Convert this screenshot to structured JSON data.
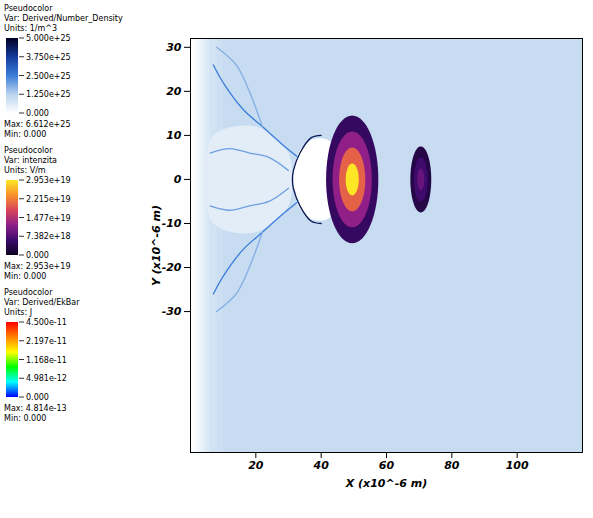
{
  "chart_data": {
    "type": "pseudocolor",
    "x_label": "X (x10^-6 m)",
    "y_label": "Y (x10^-6 m)",
    "xlim": [
      0,
      120
    ],
    "xticks": [
      20,
      40,
      60,
      80,
      100
    ],
    "ylim": [
      -62,
      32
    ],
    "yticks": [
      -30,
      -20,
      -10,
      0,
      10,
      20,
      30
    ],
    "colorbars": [
      {
        "title": "Pseudocolor",
        "var": "Var: Derived/Number_Density",
        "units": "Units: 1/m^3",
        "range": [
          0,
          5e+25
        ],
        "ticks": [
          {
            "value": 5e+25,
            "label": "5.000e+25"
          },
          {
            "value": 3.75e+25,
            "label": "3.750e+25"
          },
          {
            "value": 2.5e+25,
            "label": "2.500e+25"
          },
          {
            "value": 1.25e+25,
            "label": "1.250e+25"
          },
          {
            "value": 0,
            "label": "0.000"
          }
        ],
        "max": "Max: 6.612e+25",
        "min": "Min: 0.000"
      },
      {
        "title": "Pseudocolor",
        "var": "Var: intenzita",
        "units": "Units: V/m",
        "range": [
          0,
          2.953e+19
        ],
        "ticks": [
          {
            "value": 2.953e+19,
            "label": "2.953e+19"
          },
          {
            "value": 2.215e+19,
            "label": "2.215e+19"
          },
          {
            "value": 1.477e+19,
            "label": "1.477e+19"
          },
          {
            "value": 7.382e+18,
            "label": "7.382e+18"
          },
          {
            "value": 0,
            "label": "0.000"
          }
        ],
        "max": "Max: 2.953e+19",
        "min": "Min: 0.000"
      },
      {
        "title": "Pseudocolor",
        "var": "Var: Derived/EkBar",
        "units": "Units: J",
        "range": [
          0,
          4.5e-11
        ],
        "ticks": [
          {
            "value": 4.5e-11,
            "label": "4.500e-11"
          },
          {
            "value": 2.197e-11,
            "label": "2.197e-11"
          },
          {
            "value": 1.168e-11,
            "label": "1.168e-11"
          },
          {
            "value": 4.981e-12,
            "label": "4.981e-12"
          },
          {
            "value": 0,
            "label": "0.000"
          }
        ],
        "max": "Max: 4.814e-13",
        "min": "Min: 0.000"
      }
    ],
    "number_density": {
      "profile": {
        "x": [
          0,
          1,
          2,
          3,
          4,
          5,
          6,
          8,
          10
        ],
        "values": [
          0,
          1e+24,
          2e+24,
          3.5e+24,
          5e+24,
          6.5e+24,
          8e+24,
          9e+24,
          1e+25
        ]
      },
      "regions": [
        {
          "points": [
            [
              5,
              0
            ],
            [
              7,
              10
            ],
            [
              20,
              12
            ],
            [
              30,
              6
            ],
            [
              31,
              0
            ],
            [
              30,
              -6
            ],
            [
              20,
              -12
            ],
            [
              7,
              -10
            ]
          ],
          "value": 5e+24
        },
        {
          "points": [
            [
              31.5,
              0
            ],
            [
              33,
              6
            ],
            [
              37,
              9
            ],
            [
              42,
              9
            ],
            [
              45,
              6
            ],
            [
              46,
              0
            ],
            [
              45,
              -6
            ],
            [
              42,
              -9
            ],
            [
              37,
              -9
            ],
            [
              33,
              -6
            ]
          ],
          "value": 0
        }
      ],
      "filaments": [
        {
          "points": [
            [
              40,
              10
            ],
            [
              37,
              9.5
            ],
            [
              33.5,
              6
            ],
            [
              31.5,
              2
            ],
            [
              31.2,
              0
            ],
            [
              31.5,
              -2
            ],
            [
              33.5,
              -6
            ],
            [
              37,
              -9.5
            ],
            [
              40,
              -10
            ]
          ],
          "value": 4.5e+25
        },
        {
          "points": [
            [
              33,
              5
            ],
            [
              28,
              8
            ],
            [
              22,
              12
            ],
            [
              16,
              16
            ],
            [
              10,
              22
            ],
            [
              7,
              26
            ]
          ],
          "value": 2.5e+25
        },
        {
          "points": [
            [
              33,
              -5
            ],
            [
              28,
              -8
            ],
            [
              22,
              -12
            ],
            [
              16,
              -16
            ],
            [
              10,
              -22
            ],
            [
              7,
              -26
            ]
          ],
          "value": 2.5e+25
        },
        {
          "points": [
            [
              30,
              2
            ],
            [
              24,
              5
            ],
            [
              18,
              6
            ],
            [
              12,
              7
            ],
            [
              6,
              6
            ]
          ],
          "value": 2e+25
        },
        {
          "points": [
            [
              30,
              -2
            ],
            [
              24,
              -5
            ],
            [
              18,
              -6
            ],
            [
              12,
              -7
            ],
            [
              6,
              -6
            ]
          ],
          "value": 2e+25
        },
        {
          "points": [
            [
              22,
              12
            ],
            [
              18,
              20
            ],
            [
              14,
              26
            ],
            [
              8,
              30
            ]
          ],
          "value": 1.8e+25
        },
        {
          "points": [
            [
              22,
              -12
            ],
            [
              18,
              -20
            ],
            [
              14,
              -26
            ],
            [
              8,
              -30
            ]
          ],
          "value": 1.8e+25
        }
      ]
    },
    "intensity": {
      "pulses": [
        {
          "x": 49.5,
          "y": 0,
          "rx": 8,
          "ry": 14.5,
          "levels": [
            5e+18,
            1.2e+19,
            2e+19,
            2.953e+19
          ]
        },
        {
          "x": 70.5,
          "y": 0,
          "rx": 3.2,
          "ry": 7.5,
          "levels": [
            3e+18,
            6e+18,
            9e+18
          ]
        }
      ]
    }
  }
}
